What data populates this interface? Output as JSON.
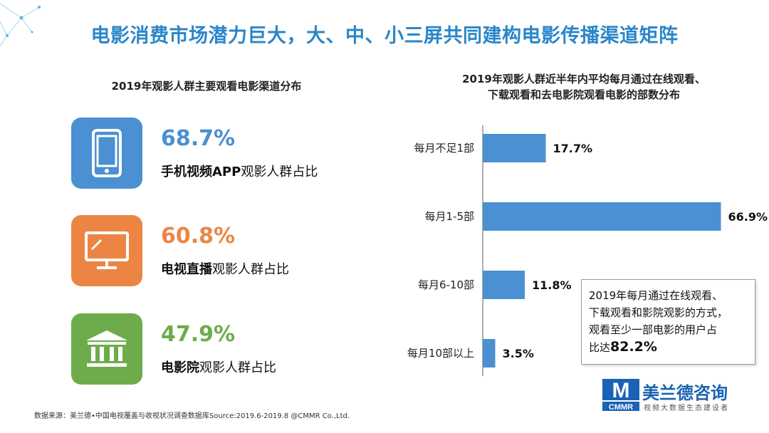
{
  "title": "电影消费市场潜力巨大，大、中、小三屏共同建构电影传播渠道矩阵",
  "left_panel": {
    "title": "2019年观影人群主要观看电影渠道分布",
    "items": [
      {
        "icon": "smartphone-icon",
        "color": "#4a90d2",
        "value": "68.7%",
        "label_bold": "手机视频APP",
        "label_rest": "观影人群占比"
      },
      {
        "icon": "monitor-icon",
        "color": "#ec8544",
        "value": "60.8%",
        "label_bold": "电视直播",
        "label_rest": "观影人群占比"
      },
      {
        "icon": "cinema-building-icon",
        "color": "#6eac4b",
        "value": "47.9%",
        "label_bold": "电影院",
        "label_rest": "观影人群占比"
      }
    ]
  },
  "right_panel": {
    "title_line1": "2019年观影人群近半年内平均每月通过在线观看、",
    "title_line2": "下载观看和去电影院观看电影的部数分布"
  },
  "chart_data": {
    "type": "bar",
    "orientation": "horizontal",
    "categories": [
      "每月不足1部",
      "每月1-5部",
      "每月6-10部",
      "每月10部以上"
    ],
    "values": [
      17.7,
      66.9,
      11.8,
      3.5
    ],
    "value_labels": [
      "17.7%",
      "66.9%",
      "11.8%",
      "3.5%"
    ],
    "title": "",
    "xlabel": "",
    "ylabel": "",
    "xlim": [
      0,
      100
    ],
    "grid": false,
    "bar_color": "#4a90d2"
  },
  "callout": {
    "line1": "2019年每月通过在线观看、",
    "line2": "下载观看和影院观影的方式，",
    "line3": "观看至少一部电影的用户占",
    "line4_prefix": "比达",
    "value": "82.2%"
  },
  "source": "数据来源：美兰德•中国电视覆盖与收视状况调查数据库Source:2019.6-2019.8 @CMMR Co.,Ltd.",
  "logo": {
    "mark_text": "M",
    "abbr": "CMMR",
    "name": "美兰德咨询",
    "tagline": "视频大数据生态建设者"
  }
}
